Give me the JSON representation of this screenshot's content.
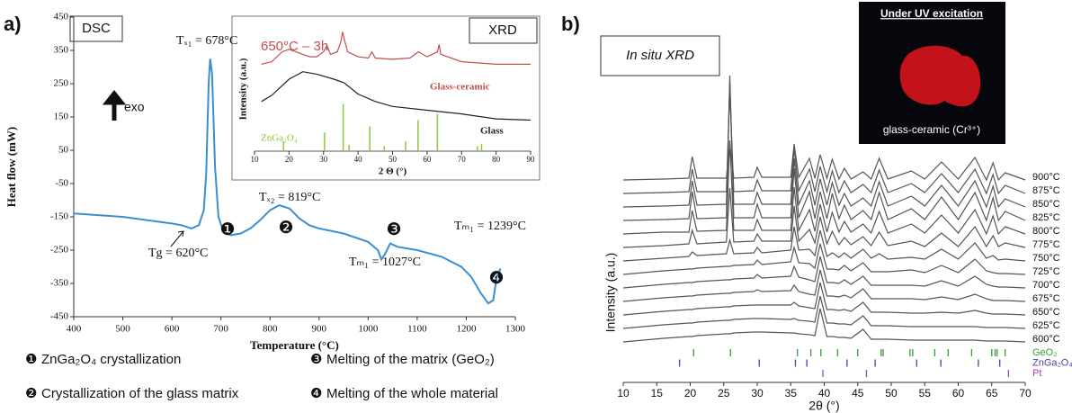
{
  "panels": [
    "a)",
    "b)"
  ],
  "notes": [
    {
      "marker": "❶",
      "text": "ZnGa₂O₄ crystallization"
    },
    {
      "marker": "❷",
      "text": "Crystallization of the glass matrix"
    },
    {
      "marker": "❸",
      "text": "Melting of the matrix (GeO₂)"
    },
    {
      "marker": "❹",
      "text": "Melting of the whole material"
    }
  ],
  "photo": {
    "title": "Under UV excitation",
    "caption": "glass-ceramic (Cr³⁺)"
  },
  "chart_data": [
    {
      "type": "line",
      "title": "DSC",
      "x_label": "Temperature (°C)",
      "y_label": "Heat flow (mW)",
      "xlim": [
        400,
        1300
      ],
      "ylim": [
        -450,
        450
      ],
      "xticks": [
        400,
        500,
        600,
        700,
        800,
        900,
        1000,
        1100,
        1200,
        1300
      ],
      "yticks": [
        -450,
        -350,
        -250,
        -150,
        -50,
        50,
        150,
        250,
        350,
        450
      ],
      "indicator": "exo",
      "annotations": [
        "Tₓ₁ = 678°C",
        "Tg = 620°C",
        "Tₓ₂ = 819°C",
        "Tₘ₁ = 1027°C",
        "Tₘ₁ = 1239°C"
      ],
      "markers": [
        "❶",
        "❷",
        "❸",
        "❹"
      ],
      "series": [
        {
          "color": "#3b8fd0",
          "x": [
            400,
            450,
            500,
            550,
            600,
            620,
            640,
            655,
            665,
            670,
            675,
            678,
            682,
            688,
            695,
            705,
            720,
            740,
            760,
            780,
            800,
            819,
            840,
            860,
            880,
            900,
            950,
            1000,
            1020,
            1027,
            1035,
            1045,
            1060,
            1100,
            1150,
            1190,
            1210,
            1230,
            1245,
            1255,
            1262,
            1270
          ],
          "values": [
            -140,
            -145,
            -150,
            -160,
            -170,
            -175,
            -185,
            -175,
            -130,
            -20,
            250,
            325,
            280,
            0,
            -150,
            -195,
            -205,
            -200,
            -185,
            -160,
            -130,
            -115,
            -125,
            -155,
            -175,
            -185,
            -200,
            -225,
            -250,
            -278,
            -260,
            -230,
            -240,
            -250,
            -270,
            -300,
            -330,
            -380,
            -410,
            -400,
            -330,
            -305
          ]
        }
      ]
    },
    {
      "type": "line",
      "title": "XRD",
      "subtitle": "650°C – 3h",
      "x_label": "2 Θ (°)",
      "y_label": "Intensity (a.u.)",
      "xlim": [
        10,
        90
      ],
      "ylim": [
        0,
        100
      ],
      "xticks": [
        10,
        20,
        30,
        40,
        50,
        60,
        70,
        80,
        90
      ],
      "series": [
        {
          "name": "Glass-ceramic",
          "color": "#c0504d",
          "x": [
            12,
            15,
            18,
            20,
            22,
            24,
            26,
            28,
            30,
            31,
            32,
            34,
            35,
            35.5,
            36,
            37,
            40,
            43,
            44,
            45,
            50,
            55,
            57.5,
            60,
            63,
            63.5,
            64,
            70,
            80,
            90
          ],
          "values": [
            70,
            72,
            80,
            82,
            80,
            78,
            76,
            76,
            80,
            85,
            78,
            80,
            88,
            96,
            90,
            80,
            76,
            75,
            80,
            75,
            74,
            75,
            80,
            76,
            80,
            86,
            78,
            72,
            70,
            70
          ]
        },
        {
          "name": "Glass",
          "color": "#222222",
          "x": [
            12,
            15,
            20,
            24,
            28,
            33,
            36,
            40,
            45,
            50,
            60,
            70,
            80,
            90
          ],
          "values": [
            40,
            45,
            58,
            64,
            62,
            58,
            55,
            46,
            40,
            36,
            33,
            30,
            26,
            25
          ]
        }
      ],
      "reference": {
        "name": "ZnGa₂O₄",
        "color": "#8cc63f",
        "x": [
          18.4,
          30.3,
          35.7,
          37.4,
          43.4,
          47.6,
          53.8,
          57.4,
          63.0,
          74.6,
          75.8
        ],
        "values": [
          8,
          15,
          38,
          5,
          20,
          4,
          8,
          25,
          30,
          4,
          6
        ]
      }
    },
    {
      "type": "line",
      "title": "In situ XRD",
      "x_label": "2θ (°)",
      "y_label": "Intensity (a.u.)",
      "xlim": [
        10,
        70
      ],
      "ylim": [
        0,
        260
      ],
      "xticks": [
        10,
        15,
        20,
        25,
        30,
        35,
        40,
        45,
        50,
        55,
        60,
        65,
        70
      ],
      "x": [
        10,
        16,
        19.8,
        20.3,
        21,
        25.4,
        25.9,
        26.5,
        29.5,
        30,
        30.7,
        35,
        35.5,
        36.2,
        37.8,
        38.6,
        39.4,
        40.4,
        41.2,
        42.2,
        43,
        44,
        45.8,
        47,
        48.2,
        49.5,
        53,
        55,
        57.5,
        60,
        62.5,
        64.2,
        65.2,
        66,
        67,
        70
      ],
      "series": [
        {
          "name": "600°C",
          "color": "#555555",
          "values": [
            0,
            4,
            6,
            6,
            7,
            9,
            9,
            10,
            11,
            11,
            11,
            10,
            10,
            9,
            8,
            7,
            37,
            6,
            6,
            5,
            5,
            4,
            14,
            3,
            3,
            3,
            2,
            2,
            2,
            2,
            2,
            1,
            1,
            1,
            1,
            0
          ]
        },
        {
          "name": "625°C",
          "color": "#555555",
          "values": [
            0,
            4,
            6,
            6,
            7,
            9,
            9,
            10,
            11,
            11,
            11,
            10,
            11,
            9,
            8,
            7,
            36,
            6,
            6,
            5,
            5,
            4,
            14,
            3,
            3,
            3,
            2,
            2,
            2,
            2,
            2,
            1,
            1,
            1,
            1,
            0
          ]
        },
        {
          "name": "650°C",
          "color": "#555555",
          "values": [
            0,
            4,
            6,
            6,
            7,
            9,
            9,
            10,
            11,
            11,
            11,
            11,
            14,
            10,
            8,
            7,
            36,
            6,
            6,
            5,
            6,
            4,
            14,
            3,
            3,
            3,
            2,
            2,
            3,
            2,
            5,
            2,
            1,
            1,
            1,
            0
          ]
        },
        {
          "name": "675°C",
          "color": "#555555",
          "values": [
            0,
            4,
            6,
            6,
            7,
            9,
            9,
            10,
            11,
            13,
            11,
            12,
            18,
            11,
            8,
            7,
            35,
            6,
            6,
            5,
            7,
            4,
            14,
            3,
            3,
            3,
            3,
            2,
            5,
            2,
            8,
            3,
            1,
            1,
            1,
            0
          ]
        },
        {
          "name": "700°C",
          "color": "#555555",
          "values": [
            0,
            4,
            6,
            6,
            7,
            9,
            9,
            10,
            11,
            15,
            11,
            13,
            24,
            12,
            9,
            7,
            35,
            6,
            6,
            5,
            9,
            4,
            13,
            3,
            3,
            3,
            3,
            2,
            8,
            2,
            13,
            4,
            2,
            1,
            1,
            0
          ]
        },
        {
          "name": "725°C",
          "color": "#555555",
          "values": [
            0,
            4,
            6,
            6,
            7,
            9,
            9,
            10,
            11,
            16,
            11,
            14,
            30,
            13,
            12,
            7,
            34,
            6,
            6,
            5,
            10,
            4,
            13,
            3,
            3,
            3,
            5,
            2,
            10,
            2,
            17,
            4,
            2,
            1,
            1,
            0
          ]
        },
        {
          "name": "750°C",
          "color": "#555555",
          "values": [
            0,
            3,
            5,
            10,
            6,
            8,
            23,
            8,
            9,
            15,
            9,
            12,
            38,
            12,
            13,
            6,
            34,
            5,
            9,
            4,
            9,
            3,
            13,
            3,
            8,
            2,
            4,
            2,
            13,
            2,
            20,
            3,
            6,
            1,
            2,
            0
          ]
        },
        {
          "name": "775°C",
          "color": "#555555",
          "values": [
            0,
            2,
            4,
            19,
            4,
            6,
            66,
            6,
            7,
            15,
            7,
            7,
            46,
            7,
            20,
            5,
            34,
            4,
            18,
            3,
            11,
            3,
            12,
            2,
            17,
            2,
            7,
            1,
            16,
            1,
            23,
            1,
            13,
            1,
            5,
            0
          ]
        },
        {
          "name": "800°C",
          "color": "#555555",
          "values": [
            0,
            2,
            2,
            26,
            3,
            4,
            104,
            4,
            4,
            16,
            4,
            4,
            52,
            4,
            27,
            3,
            33,
            2,
            24,
            2,
            14,
            2,
            11,
            1,
            25,
            1,
            11,
            1,
            21,
            1,
            27,
            0,
            20,
            0,
            8,
            0
          ]
        },
        {
          "name": "825°C",
          "color": "#555555",
          "values": [
            0,
            1,
            2,
            32,
            2,
            3,
            161,
            3,
            3,
            18,
            3,
            3,
            58,
            3,
            32,
            2,
            32,
            2,
            30,
            2,
            17,
            1,
            11,
            1,
            31,
            1,
            13,
            1,
            26,
            1,
            31,
            0,
            25,
            0,
            10,
            0
          ]
        },
        {
          "name": "850°C",
          "color": "#555555",
          "values": [
            0,
            1,
            2,
            29,
            2,
            3,
            138,
            3,
            3,
            16,
            3,
            3,
            54,
            3,
            29,
            2,
            31,
            2,
            27,
            2,
            15,
            1,
            10,
            1,
            28,
            1,
            12,
            1,
            24,
            1,
            29,
            0,
            23,
            0,
            9,
            0
          ]
        },
        {
          "name": "875°C",
          "color": "#555555",
          "values": [
            0,
            1,
            2,
            27,
            2,
            2,
            115,
            2,
            3,
            15,
            3,
            3,
            50,
            3,
            27,
            2,
            30,
            2,
            25,
            1,
            14,
            1,
            10,
            1,
            26,
            1,
            11,
            1,
            22,
            1,
            27,
            0,
            21,
            0,
            9,
            0
          ]
        },
        {
          "name": "900°C",
          "color": "#555555",
          "values": [
            0,
            1,
            2,
            26,
            2,
            2,
            40,
            2,
            3,
            14,
            3,
            3,
            40,
            3,
            24,
            2,
            28,
            2,
            23,
            1,
            13,
            1,
            9,
            1,
            24,
            1,
            10,
            1,
            20,
            1,
            25,
            0,
            19,
            0,
            8,
            0
          ]
        }
      ],
      "references": [
        {
          "name": "GeO₂",
          "color": "#3a9a3a",
          "x": [
            20.5,
            26,
            36,
            38,
            39.5,
            42,
            45,
            48.5,
            48.8,
            52.8,
            53.2,
            56.5,
            58.5,
            62,
            65,
            65.5,
            65.8,
            67
          ]
        },
        {
          "name": "ZnGa₂O₄",
          "color": "#4b3fa0",
          "x": [
            18.4,
            30.3,
            35.7,
            37.4,
            43.4,
            47.6,
            53.8,
            57.4,
            63.0,
            66.2
          ]
        },
        {
          "name": "Pt",
          "color": "#9a3fc0",
          "x": [
            39.8,
            46.3,
            67.5
          ]
        }
      ]
    }
  ]
}
